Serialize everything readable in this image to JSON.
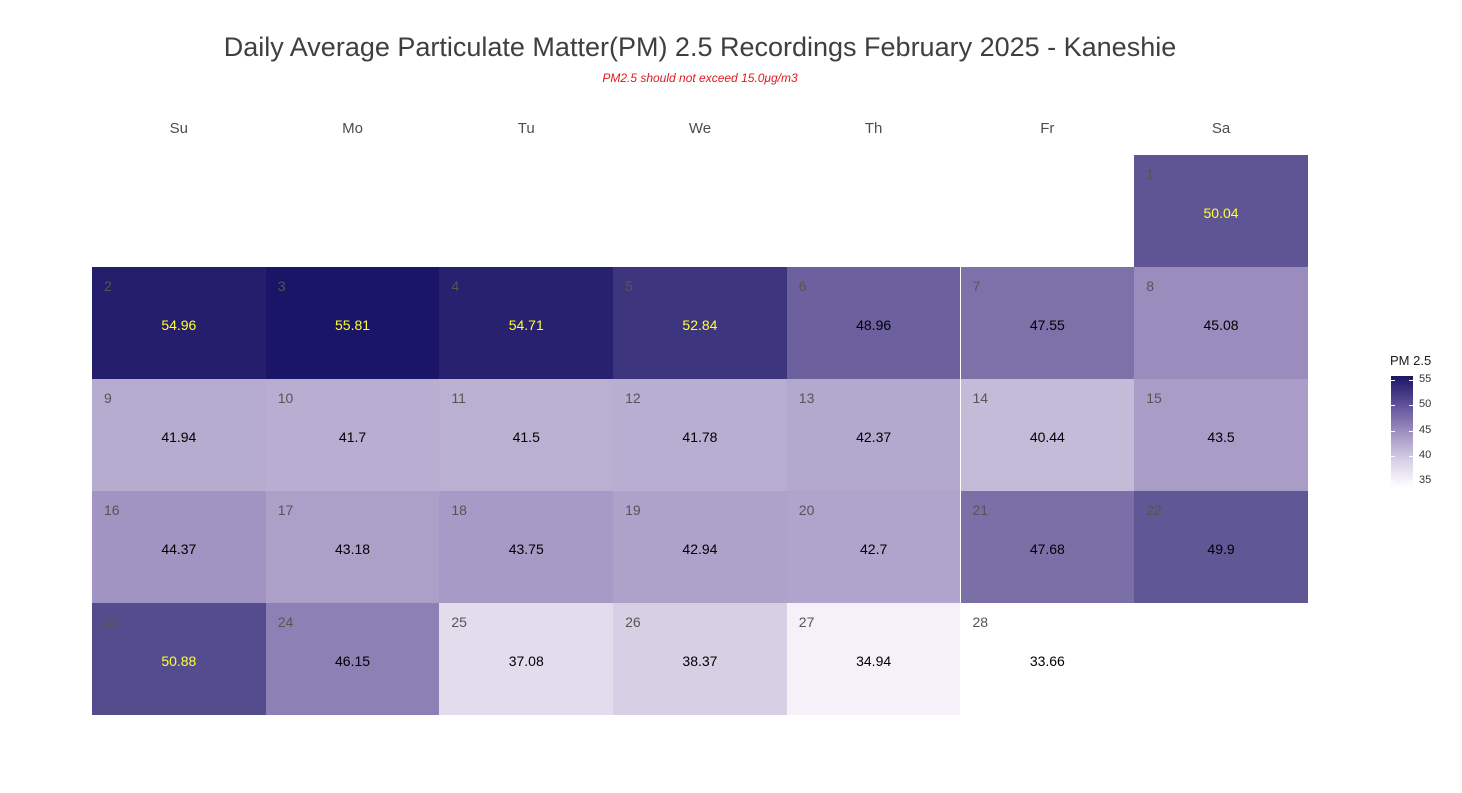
{
  "chart_data": {
    "type": "heatmap",
    "title": "Daily Average Particulate Matter(PM) 2.5 Recordings February 2025 -  Kaneshie",
    "subtitle": "PM2.5 should not exceed 15.0μg/m3",
    "weekdays": [
      "Su",
      "Mo",
      "Tu",
      "We",
      "Th",
      "Fr",
      "Sa"
    ],
    "month_start_weekday": 6,
    "days": [
      1,
      2,
      3,
      4,
      5,
      6,
      7,
      8,
      9,
      10,
      11,
      12,
      13,
      14,
      15,
      16,
      17,
      18,
      19,
      20,
      21,
      22,
      23,
      24,
      25,
      26,
      27,
      28
    ],
    "values": [
      50.04,
      54.96,
      55.81,
      54.71,
      52.84,
      48.96,
      47.55,
      45.08,
      41.94,
      41.7,
      41.5,
      41.78,
      42.37,
      40.44,
      43.5,
      44.37,
      43.18,
      43.75,
      42.94,
      42.7,
      47.68,
      49.9,
      50.88,
      46.15,
      37.08,
      38.37,
      34.94,
      33.66
    ],
    "value_labels": [
      "50.04",
      "54.96",
      "55.81",
      "54.71",
      "52.84",
      "48.96",
      "47.55",
      "45.08",
      "41.94",
      "41.7",
      "41.5",
      "41.78",
      "42.37",
      "40.44",
      "43.5",
      "44.37",
      "43.18",
      "43.75",
      "42.94",
      "42.7",
      "47.68",
      "49.9",
      "50.88",
      "46.15",
      "37.08",
      "38.37",
      "34.94",
      "33.66"
    ],
    "label_highlight_threshold": 50,
    "label_colors": {
      "high": "#ffff33",
      "normal": "#000000"
    },
    "colorscale": {
      "min": 33.66,
      "max": 55.81,
      "low": "#ffffff",
      "high": "#1a1566"
    },
    "legend": {
      "title": "PM 2.5",
      "ticks": [
        55,
        50,
        45,
        40,
        35
      ],
      "tick_labels": [
        "55",
        "50",
        "45",
        "40",
        "35"
      ],
      "position": "right"
    }
  }
}
